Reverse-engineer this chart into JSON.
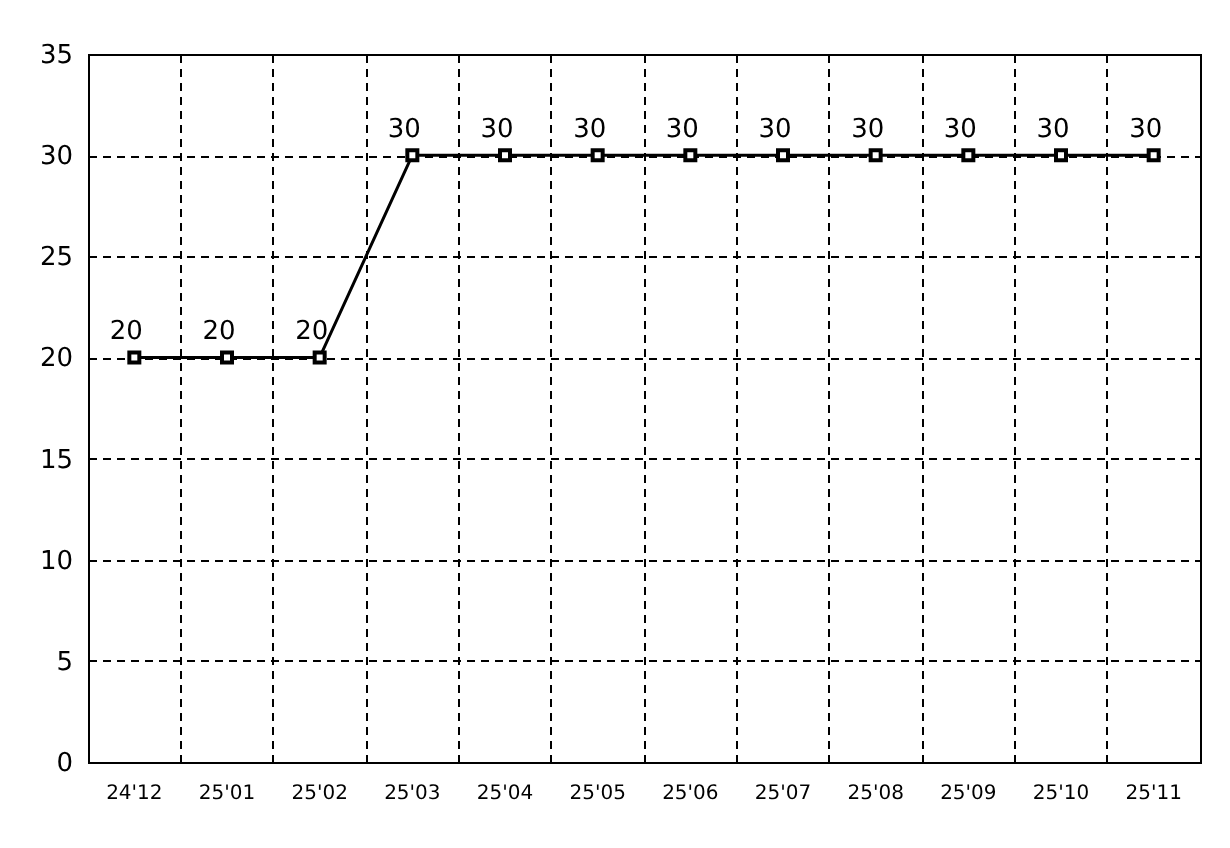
{
  "chart_data": {
    "type": "line",
    "categories": [
      "24'12",
      "25'01",
      "25'02",
      "25'03",
      "25'04",
      "25'05",
      "25'06",
      "25'07",
      "25'08",
      "25'09",
      "25'10",
      "25'11"
    ],
    "series": [
      {
        "color": "#000000",
        "values": [
          20,
          20,
          20,
          30,
          30,
          30,
          30,
          30,
          30,
          30,
          30,
          30
        ]
      }
    ],
    "ylim": [
      0,
      35
    ],
    "yticks": [
      0,
      5,
      10,
      15,
      20,
      25,
      30,
      35
    ],
    "grid": true,
    "marker": "square",
    "line_style": "solid",
    "data_labels": true
  }
}
